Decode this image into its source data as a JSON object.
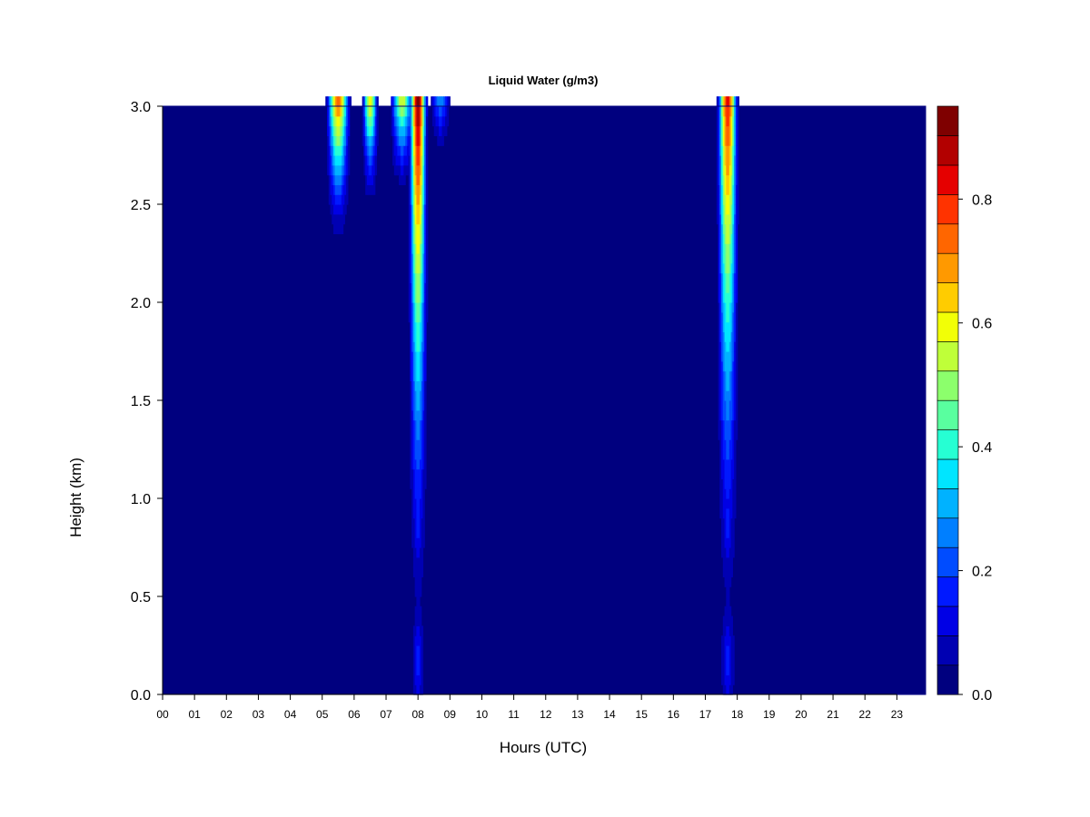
{
  "chart_data": {
    "type": "heatmap",
    "title": "Liquid Water (g/m3)",
    "xlabel": "Hours (UTC)",
    "ylabel": "Height (km)",
    "xlim": [
      0,
      23.9
    ],
    "ylim": [
      0.0,
      3.0
    ],
    "x_ticks": [
      "00",
      "01",
      "02",
      "03",
      "04",
      "05",
      "06",
      "07",
      "08",
      "09",
      "10",
      "11",
      "12",
      "13",
      "14",
      "15",
      "16",
      "17",
      "18",
      "19",
      "20",
      "21",
      "22",
      "23"
    ],
    "y_ticks": [
      "0.0",
      "0.5",
      "1.0",
      "1.5",
      "2.0",
      "2.5",
      "3.0"
    ],
    "colorbar": {
      "range": [
        0.0,
        0.95
      ],
      "levels": [
        0.0,
        0.05,
        0.1,
        0.15,
        0.2,
        0.25,
        0.3,
        0.35,
        0.4,
        0.45,
        0.5,
        0.55,
        0.6,
        0.65,
        0.7,
        0.75,
        0.8,
        0.85,
        0.9,
        0.95
      ],
      "tick_values": [
        0.0,
        0.2,
        0.4,
        0.6,
        0.8
      ],
      "tick_labels": [
        "0.0",
        "0.2",
        "0.4",
        "0.6",
        "0.8"
      ],
      "colors": [
        "#00007f",
        "#0000b2",
        "#0000e5",
        "#0019ff",
        "#004cff",
        "#007fff",
        "#00b2ff",
        "#00e5ff",
        "#26ffd3",
        "#59ff9f",
        "#8cff6c",
        "#bfff39",
        "#f2ff06",
        "#ffcc00",
        "#ff9900",
        "#ff6600",
        "#ff3300",
        "#e50000",
        "#b20000",
        "#7f0000"
      ]
    },
    "background_value": 0.0,
    "cloud_events": [
      {
        "center_hour": 5.5,
        "width_hours": 0.45,
        "top_value": 0.75,
        "bottom_km": 2.2
      },
      {
        "center_hour": 6.5,
        "width_hours": 0.3,
        "top_value": 0.6,
        "bottom_km": 2.4
      },
      {
        "center_hour": 7.5,
        "width_hours": 0.45,
        "top_value": 0.55,
        "bottom_km": 2.5
      },
      {
        "center_hour": 8.0,
        "width_hours": 0.35,
        "top_value": 0.95,
        "bottom_km": 0.0
      },
      {
        "center_hour": 8.7,
        "width_hours": 0.4,
        "top_value": 0.25,
        "bottom_km": 2.7
      },
      {
        "center_hour": 17.7,
        "width_hours": 0.4,
        "top_value": 0.85,
        "bottom_km": 0.0
      }
    ]
  }
}
